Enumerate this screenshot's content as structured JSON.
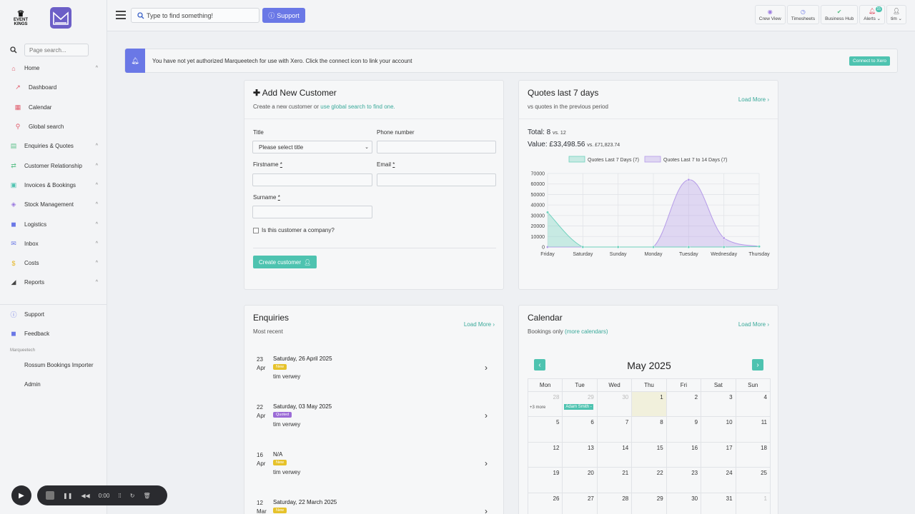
{
  "brand": {
    "logo_line1": "EVENT",
    "logo_line2": "KINGS"
  },
  "sidebar": {
    "search_placeholder": "Page search...",
    "items": [
      {
        "label": "Home",
        "icon": "home-icon",
        "color": "#e05a6a",
        "chevron": "^"
      },
      {
        "label": "Dashboard",
        "icon": "chart-line-icon",
        "color": "#e05a6a",
        "sub": true
      },
      {
        "label": "Calendar",
        "icon": "calendar-icon",
        "color": "#e05a6a",
        "sub": true
      },
      {
        "label": "Global search",
        "icon": "search-icon",
        "color": "#e05a6a",
        "sub": true
      },
      {
        "label": "Enquiries & Quotes",
        "icon": "document-icon",
        "color": "#5cc08a",
        "chevron": "^"
      },
      {
        "label": "Customer Relationship",
        "icon": "handshake-icon",
        "color": "#5cc08a",
        "chevron": "^"
      },
      {
        "label": "Invoices & Bookings",
        "icon": "invoice-icon",
        "color": "#4ec3b0",
        "chevron": "^"
      },
      {
        "label": "Stock Management",
        "icon": "boxes-icon",
        "color": "#9b7be0",
        "chevron": "^"
      },
      {
        "label": "Logistics",
        "icon": "truck-icon",
        "color": "#6a78e6",
        "chevron": "^"
      },
      {
        "label": "Inbox",
        "icon": "inbox-icon",
        "color": "#6a78e6",
        "chevron": "^"
      },
      {
        "label": "Costs",
        "icon": "dollar-icon",
        "color": "#e6b520",
        "chevron": "^"
      },
      {
        "label": "Reports",
        "icon": "chart-area-icon",
        "color": "#444444",
        "chevron": "^"
      }
    ],
    "bottom_items": [
      {
        "label": "Support",
        "icon": "info-icon",
        "color": "#6a78e6"
      },
      {
        "label": "Feedback",
        "icon": "comment-icon",
        "color": "#6a78e6"
      }
    ],
    "section_label": "Marqueetech",
    "section_items": [
      {
        "label": "Rossum Bookings Importer"
      },
      {
        "label": "Admin"
      }
    ]
  },
  "topbar": {
    "search_placeholder": "Type to find something!",
    "support_label": "Support",
    "tools": [
      {
        "label": "Crew View",
        "icon": "eye-icon",
        "color": "#9b7be0"
      },
      {
        "label": "Timesheets",
        "icon": "clock-icon",
        "color": "#6a78e6"
      },
      {
        "label": "Business Hub",
        "icon": "check-icon",
        "color": "#5cc08a"
      },
      {
        "label": "Alerts ⌄",
        "icon": "bell-icon",
        "color": "#e05a6a",
        "badge": "15"
      },
      {
        "label": "tim ⌄",
        "icon": "user-icon",
        "color": "#444444"
      }
    ]
  },
  "alert": {
    "text": "You have not yet authorized Marqueetech for use with Xero. Click the connect icon to link your account",
    "button": "Connect to Xero"
  },
  "add_customer": {
    "title": "Add New Customer",
    "subtitle_pre": "Create a new customer or ",
    "subtitle_link": "use global search to find one.",
    "title_label": "Title",
    "title_select": "Please select title",
    "phone_label": "Phone number",
    "firstname_label": "Firstname",
    "email_label": "Email",
    "surname_label": "Surname",
    "required_mark": "*",
    "company_label": "Is this customer a company?",
    "create_button": "Create customer"
  },
  "quotes": {
    "title": "Quotes last 7 days",
    "subtitle": "vs quotes in the previous period",
    "load_more": "Load More",
    "total_label": "Total: 8",
    "total_vs": "vs. 12",
    "value_label": "Value: £33,498.56",
    "value_vs": "vs. £71,823.74"
  },
  "chart_data": {
    "type": "area",
    "categories": [
      "Friday",
      "Saturday",
      "Sunday",
      "Monday",
      "Tuesday",
      "Wednesday",
      "Thursday"
    ],
    "ylim": [
      0,
      70000
    ],
    "yticks": [
      0,
      10000,
      20000,
      30000,
      40000,
      50000,
      60000,
      70000
    ],
    "series": [
      {
        "name": "Quotes Last 7 Days (7)",
        "values": [
          33000,
          0,
          0,
          0,
          0,
          0,
          500
        ],
        "color": "#6fd1bd"
      },
      {
        "name": "Quotes Last 7 to 14 Days (7)",
        "values": [
          0,
          0,
          0,
          0,
          64000,
          8500,
          500
        ],
        "color": "#b59be8"
      }
    ],
    "legend": "top"
  },
  "enquiries": {
    "title": "Enquiries",
    "subtitle": "Most recent",
    "load_more": "Load More",
    "rows": [
      {
        "day": "23",
        "month": "Apr",
        "date": "Saturday, 26 April 2025",
        "badge": "New",
        "badge_color": "#e6c22a",
        "name": "tim verwey"
      },
      {
        "day": "22",
        "month": "Apr",
        "date": "Saturday, 03 May 2025",
        "badge": "Quoted",
        "badge_color": "#9b6bd6",
        "name": "tim verwey"
      },
      {
        "day": "16",
        "month": "Apr",
        "date": "N/A",
        "badge": "New",
        "badge_color": "#e6c22a",
        "name": "tim verwey"
      },
      {
        "day": "12",
        "month": "Mar",
        "date": "Saturday, 22 March 2025",
        "badge": "New",
        "badge_color": "#e6c22a",
        "name": ""
      }
    ]
  },
  "calendar": {
    "title": "Calendar",
    "subtitle_pre": "Bookings only ",
    "subtitle_link": "(more calendars)",
    "load_more": "Load More",
    "month": "May 2025",
    "weekdays": [
      "Mon",
      "Tue",
      "Wed",
      "Thu",
      "Fri",
      "Sat",
      "Sun"
    ],
    "weeks": [
      [
        "28",
        "29",
        "30",
        "1",
        "2",
        "3",
        "4"
      ],
      [
        "5",
        "6",
        "7",
        "8",
        "9",
        "10",
        "11"
      ],
      [
        "12",
        "13",
        "14",
        "15",
        "16",
        "17",
        "18"
      ],
      [
        "19",
        "20",
        "21",
        "22",
        "23",
        "24",
        "25"
      ],
      [
        "26",
        "27",
        "28",
        "29",
        "30",
        "31",
        "1"
      ]
    ],
    "more_label": "+3 more",
    "event_label": "Adam Smith -"
  },
  "recorder": {
    "time": "0:00"
  }
}
